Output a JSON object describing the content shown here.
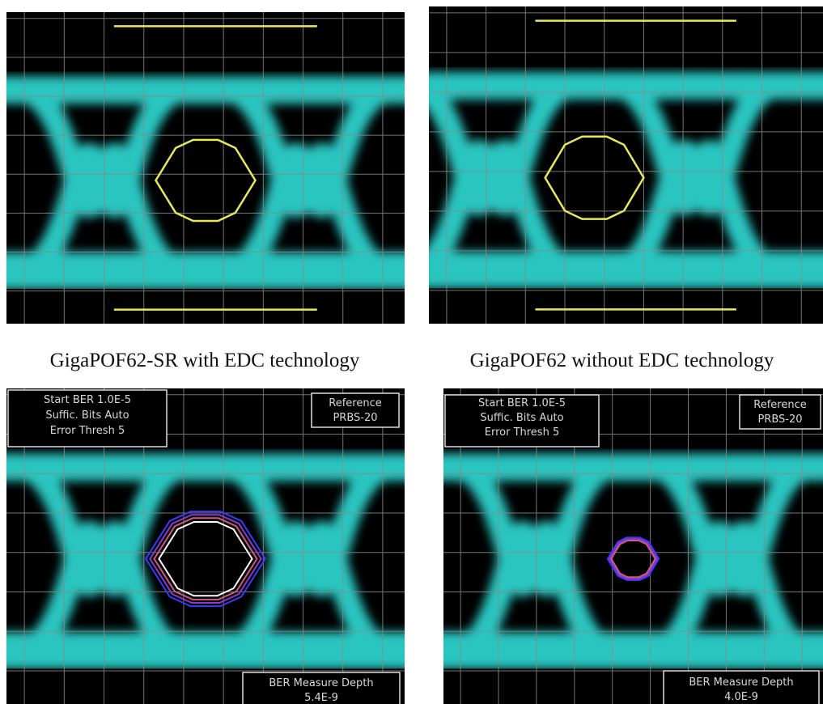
{
  "panels": [
    {
      "caption": "GigaPOF62-SR with EDC technology"
    },
    {
      "caption": "GigaPOF62 without EDC technology"
    },
    {
      "settings": [
        "Start BER 1.0E-5",
        "Suffic. Bits Auto",
        "Error Thresh 5"
      ],
      "reference": [
        "Reference",
        "PRBS-20"
      ],
      "depth": [
        "BER Measure Depth",
        "5.4E-9"
      ]
    },
    {
      "settings": [
        "Start BER 1.0E-5",
        "Suffic. Bits Auto",
        "Error Thresh 5"
      ],
      "reference": [
        "Reference",
        "PRBS-20"
      ],
      "depth": [
        "BER Measure Depth",
        "4.0E-9"
      ]
    }
  ]
}
